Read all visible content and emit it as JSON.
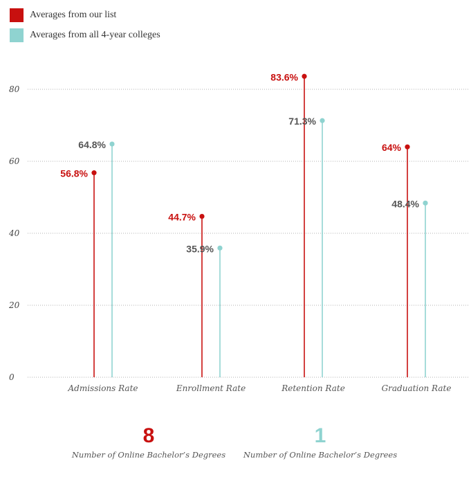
{
  "chart_data": {
    "type": "lollipop",
    "categories": [
      "Admissions Rate",
      "Enrollment Rate",
      "Retention Rate",
      "Graduation Rate"
    ],
    "series": [
      {
        "name": "Averages from our list",
        "values": [
          56.8,
          44.7,
          83.6,
          64
        ],
        "labels": [
          "56.8%",
          "44.7%",
          "83.6%",
          "64%"
        ],
        "color": "#c8100f"
      },
      {
        "name": "Averages from all 4-year colleges",
        "values": [
          64.8,
          35.9,
          71.3,
          48.4
        ],
        "labels": [
          "64.8%",
          "35.9%",
          "71.3%",
          "48.4%"
        ],
        "color": "#8fd3d0"
      }
    ],
    "ylim": [
      0,
      80
    ],
    "yticks": [
      0,
      20,
      40,
      60,
      80
    ],
    "grid": true,
    "legend_position": "top-left"
  },
  "stats": [
    {
      "value": "8",
      "label": "Number of Online Bachelor’s Degrees",
      "color": "#c8100f"
    },
    {
      "value": "1",
      "label": "Number of Online Bachelor’s Degrees",
      "color": "#8fd3d0"
    }
  ]
}
